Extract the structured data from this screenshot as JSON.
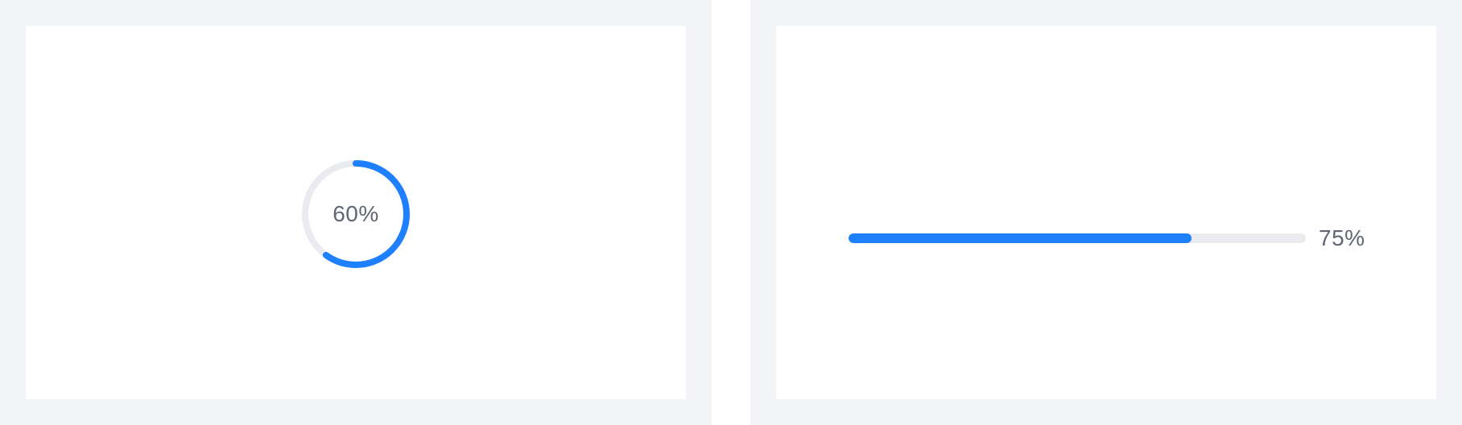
{
  "colors": {
    "page_background": "#f3f4f7",
    "card_background": "#ffffff",
    "progress_fill": "#1e80ff",
    "progress_track": "#e9ebf0",
    "label_text": "#606672"
  },
  "circle_progress": {
    "value": 0.6,
    "label": "60%"
  },
  "line_progress": {
    "value": 0.75,
    "label": "75%"
  }
}
